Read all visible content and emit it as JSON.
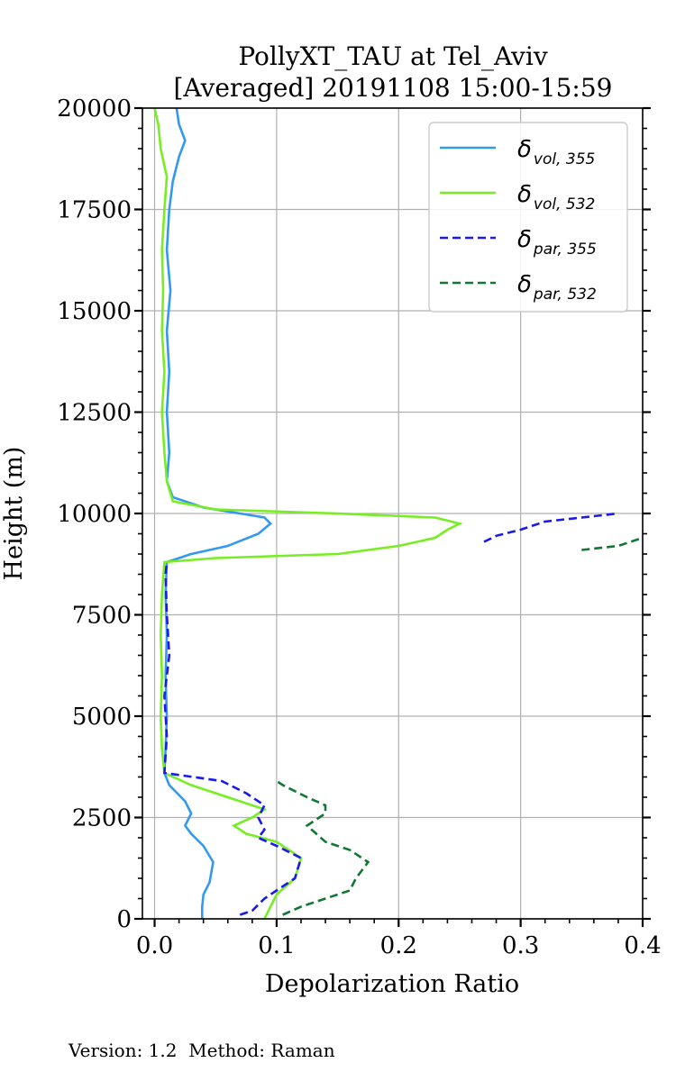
{
  "chart_data": {
    "type": "line",
    "title_line1": "PollyXT_TAU at Tel_Aviv",
    "title_line2": "[Averaged] 20191108 15:00-15:59",
    "xlabel": "Depolarization Ratio",
    "ylabel": "Height (m)",
    "xlim": [
      -0.01,
      0.4
    ],
    "ylim": [
      0,
      20000
    ],
    "x_ticks": [
      0.0,
      0.1,
      0.2,
      0.3,
      0.4
    ],
    "x_tick_labels": [
      "0.0",
      "0.1",
      "0.2",
      "0.3",
      "0.4"
    ],
    "y_ticks": [
      0,
      2500,
      5000,
      7500,
      10000,
      12500,
      15000,
      17500,
      20000
    ],
    "y_tick_labels": [
      "0",
      "2500",
      "5000",
      "7500",
      "10000",
      "12500",
      "15000",
      "17500",
      "20000"
    ],
    "grid": true,
    "legend_position": "top-right",
    "series": [
      {
        "name": "δvol,355",
        "legend_main": "δ",
        "legend_sub": "vol, 355",
        "color": "#3399ee",
        "dash": "solid",
        "points": [
          [
            0.039,
            0
          ],
          [
            0.039,
            300
          ],
          [
            0.04,
            600
          ],
          [
            0.045,
            900
          ],
          [
            0.048,
            1400
          ],
          [
            0.04,
            1800
          ],
          [
            0.03,
            2100
          ],
          [
            0.025,
            2300
          ],
          [
            0.03,
            2600
          ],
          [
            0.025,
            2900
          ],
          [
            0.012,
            3300
          ],
          [
            0.008,
            3600
          ],
          [
            0.009,
            4200
          ],
          [
            0.01,
            5000
          ],
          [
            0.009,
            6000
          ],
          [
            0.01,
            7000
          ],
          [
            0.009,
            8000
          ],
          [
            0.01,
            8800
          ],
          [
            0.03,
            9000
          ],
          [
            0.06,
            9200
          ],
          [
            0.085,
            9500
          ],
          [
            0.095,
            9750
          ],
          [
            0.09,
            9900
          ],
          [
            0.07,
            10000
          ],
          [
            0.04,
            10150
          ],
          [
            0.015,
            10400
          ],
          [
            0.01,
            10800
          ],
          [
            0.012,
            11500
          ],
          [
            0.01,
            12500
          ],
          [
            0.012,
            13500
          ],
          [
            0.01,
            14500
          ],
          [
            0.013,
            15500
          ],
          [
            0.01,
            16500
          ],
          [
            0.012,
            17500
          ],
          [
            0.015,
            18200
          ],
          [
            0.02,
            18800
          ],
          [
            0.025,
            19200
          ],
          [
            0.02,
            19600
          ],
          [
            0.018,
            20000
          ]
        ]
      },
      {
        "name": "δvol,532",
        "legend_main": "δ",
        "legend_sub": "vol, 532",
        "color": "#77ee22",
        "dash": "solid",
        "points": [
          [
            0.09,
            0
          ],
          [
            0.095,
            300
          ],
          [
            0.1,
            600
          ],
          [
            0.115,
            1000
          ],
          [
            0.12,
            1500
          ],
          [
            0.1,
            1900
          ],
          [
            0.075,
            2100
          ],
          [
            0.065,
            2300
          ],
          [
            0.08,
            2500
          ],
          [
            0.09,
            2700
          ],
          [
            0.06,
            3000
          ],
          [
            0.03,
            3300
          ],
          [
            0.008,
            3600
          ],
          [
            0.006,
            4200
          ],
          [
            0.005,
            5000
          ],
          [
            0.006,
            6000
          ],
          [
            0.005,
            7000
          ],
          [
            0.006,
            8000
          ],
          [
            0.008,
            8800
          ],
          [
            0.05,
            8900
          ],
          [
            0.15,
            9000
          ],
          [
            0.2,
            9200
          ],
          [
            0.23,
            9400
          ],
          [
            0.24,
            9600
          ],
          [
            0.25,
            9750
          ],
          [
            0.23,
            9900
          ],
          [
            0.15,
            10000
          ],
          [
            0.05,
            10100
          ],
          [
            0.015,
            10300
          ],
          [
            0.01,
            10800
          ],
          [
            0.008,
            11500
          ],
          [
            0.006,
            12500
          ],
          [
            0.008,
            13500
          ],
          [
            0.006,
            14500
          ],
          [
            0.007,
            15500
          ],
          [
            0.006,
            16500
          ],
          [
            0.008,
            17500
          ],
          [
            0.01,
            18300
          ],
          [
            0.005,
            19000
          ],
          [
            0.003,
            19600
          ],
          [
            0.0,
            20000
          ]
        ]
      },
      {
        "name": "δpar,355",
        "legend_main": "δ",
        "legend_sub": "par, 355",
        "color": "#1a1aee",
        "dash": "dashed",
        "points": [
          [
            0.07,
            100
          ],
          [
            0.08,
            200
          ],
          [
            0.09,
            500
          ],
          [
            0.1,
            700
          ],
          [
            0.115,
            1000
          ],
          [
            0.12,
            1500
          ],
          [
            0.1,
            1800
          ],
          [
            0.085,
            2000
          ],
          [
            0.09,
            2200
          ],
          [
            0.085,
            2500
          ],
          [
            0.09,
            2800
          ],
          [
            0.075,
            3100
          ],
          [
            0.055,
            3400
          ],
          [
            0.02,
            3550
          ],
          [
            0.008,
            3600
          ],
          [
            0.01,
            4500
          ],
          [
            0.008,
            5500
          ],
          [
            0.012,
            6500
          ],
          [
            0.01,
            7500
          ],
          [
            0.009,
            8500
          ],
          [
            0.01,
            8800
          ]
        ],
        "extra_points": [
          [
            0.27,
            9300
          ],
          [
            0.28,
            9450
          ],
          [
            0.3,
            9600
          ],
          [
            0.32,
            9800
          ],
          [
            0.35,
            9900
          ],
          [
            0.38,
            10000
          ]
        ]
      },
      {
        "name": "δpar,532",
        "legend_main": "δ",
        "legend_sub": "par, 532",
        "color": "#117733",
        "dash": "dashed",
        "points": [
          [
            0.105,
            100
          ],
          [
            0.12,
            300
          ],
          [
            0.14,
            500
          ],
          [
            0.16,
            700
          ],
          [
            0.165,
            1000
          ],
          [
            0.175,
            1400
          ],
          [
            0.16,
            1700
          ],
          [
            0.14,
            1900
          ],
          [
            0.125,
            2300
          ],
          [
            0.14,
            2600
          ],
          [
            0.14,
            2800
          ],
          [
            0.125,
            3000
          ],
          [
            0.105,
            3300
          ],
          [
            0.1,
            3400
          ]
        ],
        "extra_points": [
          [
            0.35,
            9100
          ],
          [
            0.38,
            9200
          ],
          [
            0.4,
            9400
          ]
        ]
      }
    ]
  },
  "footer": "Version: 1.2  Method: Raman"
}
